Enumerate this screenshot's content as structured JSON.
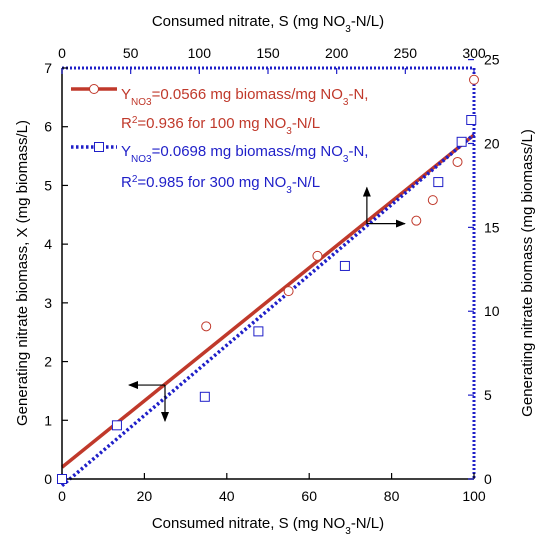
{
  "colors": {
    "series1": "#c0392b",
    "series2": "#1f1fc8",
    "frame": "#1f1fc8",
    "axis": "#000000"
  },
  "chart_data": {
    "type": "scatter",
    "bottom_axis": {
      "label_parts": [
        "Consumed nitrate, S (mg NO",
        "3",
        "-N/L)"
      ],
      "range": [
        0,
        100
      ],
      "ticks": [
        0,
        20,
        40,
        60,
        80,
        100
      ]
    },
    "top_axis": {
      "label_parts": [
        "Consumed nitrate, S (mg NO",
        "3",
        "-N/L)"
      ],
      "range": [
        0,
        300
      ],
      "ticks": [
        0,
        50,
        100,
        150,
        200,
        250,
        300
      ]
    },
    "left_axis": {
      "label": "Generating nitrate biomass, X (mg biomass/L)",
      "range": [
        0,
        7
      ],
      "ticks": [
        0,
        1,
        2,
        3,
        4,
        5,
        6,
        7
      ]
    },
    "right_axis": {
      "label": "Generating nitrate biomass (mg biomass/L)",
      "range": [
        0,
        24.5
      ],
      "ticks": [
        0,
        5,
        10,
        15,
        20,
        25
      ]
    },
    "series": [
      {
        "axes": "bottom-left",
        "marker": "circle",
        "legend_line1": [
          "Y",
          "NO3",
          "=0.0566 mg biomass/mg NO",
          "3",
          "-N,"
        ],
        "legend_line2": [
          "R",
          "2",
          "=0.936 for 100 mg NO",
          "3",
          "-N/L"
        ],
        "points": [
          [
            0,
            0
          ],
          [
            35,
            2.6
          ],
          [
            55,
            3.2
          ],
          [
            62,
            3.8
          ],
          [
            86,
            4.4
          ],
          [
            90,
            4.75
          ],
          [
            96,
            5.4
          ],
          [
            100,
            6.8
          ]
        ],
        "fit": {
          "x": [
            0,
            100
          ],
          "y": [
            0.2,
            5.86
          ]
        }
      },
      {
        "axes": "top-right",
        "marker": "square",
        "legend_line1": [
          "Y",
          "NO3",
          "=0.0698 mg biomass/mg NO",
          "3",
          "-N,"
        ],
        "legend_line2": [
          "R",
          "2",
          "=0.985 for 300 mg NO",
          "3",
          "-N/L"
        ],
        "points": [
          [
            0,
            0
          ],
          [
            40,
            3.2
          ],
          [
            104,
            4.9
          ],
          [
            143,
            8.8
          ],
          [
            206,
            12.7
          ],
          [
            274,
            17.7
          ],
          [
            291,
            20.1
          ],
          [
            298,
            21.4
          ]
        ],
        "fit": {
          "x": [
            0,
            300
          ],
          "y": [
            -0.4,
            20.54
          ]
        }
      }
    ],
    "annotations": [
      {
        "type": "arrow",
        "at": [
          74,
          4.35
        ],
        "directions": [
          "up",
          "right"
        ]
      },
      {
        "type": "arrow",
        "at": [
          25,
          1.6
        ],
        "directions": [
          "left",
          "down"
        ]
      }
    ]
  }
}
